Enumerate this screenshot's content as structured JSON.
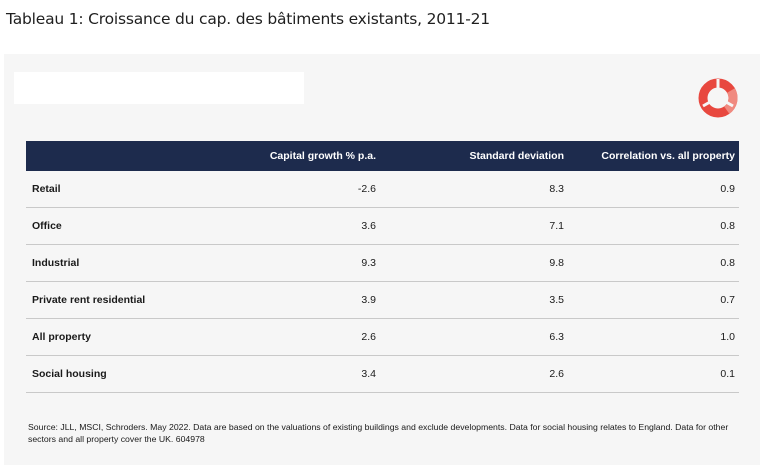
{
  "title": "Tableau 1: Croissance du cap. des bâtiments existants, 2011-21",
  "logo": {
    "icon": "schroders-ring-icon",
    "color": "#e8483f"
  },
  "table": {
    "headers": [
      "",
      "Capital growth % p.a.",
      "Standard deviation",
      "Correlation vs. all property"
    ],
    "rows": [
      {
        "label": "Retail",
        "growth": "-2.6",
        "stdev": "8.3",
        "corr": "0.9"
      },
      {
        "label": "Office",
        "growth": "3.6",
        "stdev": "7.1",
        "corr": "0.8"
      },
      {
        "label": "Industrial",
        "growth": "9.3",
        "stdev": "9.8",
        "corr": "0.8"
      },
      {
        "label": "Private rent residential",
        "growth": "3.9",
        "stdev": "3.5",
        "corr": "0.7"
      },
      {
        "label": "All property",
        "growth": "2.6",
        "stdev": "6.3",
        "corr": "1.0"
      },
      {
        "label": "Social housing",
        "growth": "3.4",
        "stdev": "2.6",
        "corr": "0.1"
      }
    ],
    "header_color": "#1d2b4d"
  },
  "source_text": "Source: JLL, MSCI, Schroders. May 2022. Data are based on the valuations of existing buildings and exclude developments. Data for social housing relates to England. Data for other sectors and all property cover the UK. 604978"
}
